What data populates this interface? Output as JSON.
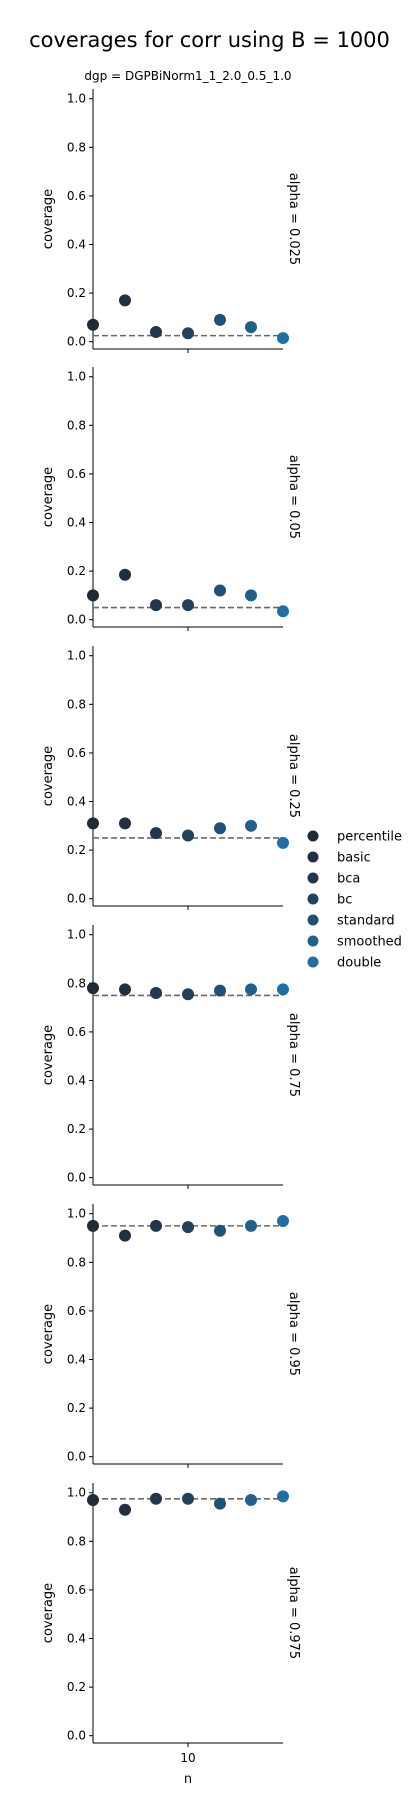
{
  "title": "coverages for corr using B = 1000",
  "subtitle": "dgp = DGPBiNorm1_1_2.0_0.5_1.0",
  "colors": {
    "percentile": "#212a35",
    "basic": "#222f3f",
    "bca": "#23374c",
    "bc": "#22415b",
    "standard": "#215276",
    "smoothed": "#20608c",
    "double": "#1f6fa6",
    "reference_line": "#696969"
  },
  "chart_data": {
    "type": "scatter",
    "title": "coverages for corr using B = 1000",
    "subtitle": "dgp = DGPBiNorm1_1_2.0_0.5_1.0",
    "xlabel": "n",
    "ylabel": "coverage",
    "x_ticks": [
      "10"
    ],
    "ylim": [
      -0.03,
      1.04
    ],
    "y_ticks": [
      "0.0",
      "0.2",
      "0.4",
      "0.6",
      "0.8",
      "1.0"
    ],
    "grid": false,
    "legend_position": "right",
    "legend": [
      "percentile",
      "basic",
      "bca",
      "bc",
      "standard",
      "smoothed",
      "double"
    ],
    "panels": [
      {
        "row_label": "alpha = 0.025",
        "reference": 0.025,
        "values": [
          0.07,
          0.17,
          0.04,
          0.035,
          0.09,
          0.06,
          0.015
        ]
      },
      {
        "row_label": "alpha = 0.05",
        "reference": 0.05,
        "values": [
          0.1,
          0.185,
          0.06,
          0.06,
          0.12,
          0.1,
          0.035
        ]
      },
      {
        "row_label": "alpha = 0.25",
        "reference": 0.25,
        "values": [
          0.31,
          0.31,
          0.27,
          0.26,
          0.29,
          0.3,
          0.23
        ]
      },
      {
        "row_label": "alpha = 0.75",
        "reference": 0.75,
        "values": [
          0.78,
          0.775,
          0.76,
          0.755,
          0.77,
          0.775,
          0.775
        ]
      },
      {
        "row_label": "alpha = 0.95",
        "reference": 0.95,
        "values": [
          0.95,
          0.91,
          0.95,
          0.945,
          0.93,
          0.95,
          0.97
        ]
      },
      {
        "row_label": "alpha = 0.975",
        "reference": 0.975,
        "values": [
          0.97,
          0.93,
          0.975,
          0.975,
          0.955,
          0.97,
          0.985
        ]
      }
    ]
  }
}
